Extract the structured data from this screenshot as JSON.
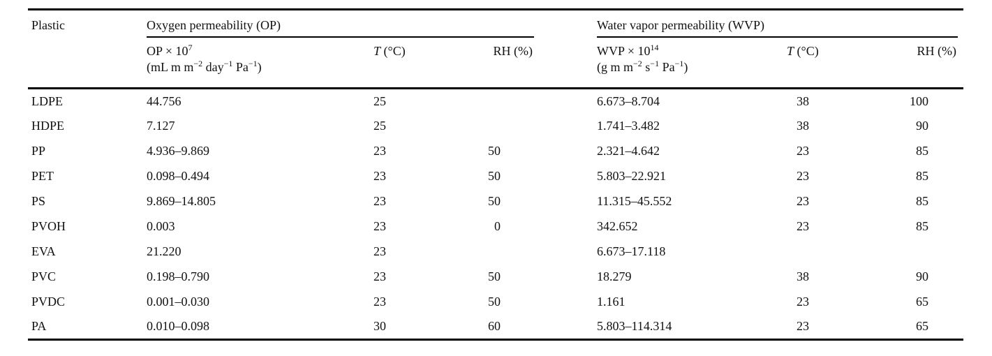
{
  "page": {
    "background": "#ffffff",
    "text_color": "#111111",
    "rule_color": "#000000"
  },
  "table": {
    "headers": {
      "plastic": "Plastic",
      "op_group": "Oxygen permeability (OP)",
      "wvp_group": "Water vapor permeability (WVP)",
      "op_sub_line1": [
        {
          "t": "txt",
          "v": "OP × 10"
        },
        {
          "t": "sup",
          "v": "7"
        }
      ],
      "op_sub_line2": [
        {
          "t": "txt",
          "v": "(mL m m"
        },
        {
          "t": "sup",
          "v": "−2"
        },
        {
          "t": "txt",
          "v": " day"
        },
        {
          "t": "sup",
          "v": "−1"
        },
        {
          "t": "txt",
          "v": " Pa"
        },
        {
          "t": "sup",
          "v": "−1"
        },
        {
          "t": "txt",
          "v": ")"
        }
      ],
      "wvp_sub_line1": [
        {
          "t": "txt",
          "v": "WVP × 10"
        },
        {
          "t": "sup",
          "v": "14"
        }
      ],
      "wvp_sub_line2": [
        {
          "t": "txt",
          "v": "(g m m"
        },
        {
          "t": "sup",
          "v": "−2"
        },
        {
          "t": "txt",
          "v": " s"
        },
        {
          "t": "sup",
          "v": "−1"
        },
        {
          "t": "txt",
          "v": " Pa"
        },
        {
          "t": "sup",
          "v": "−1"
        },
        {
          "t": "txt",
          "v": ")"
        }
      ],
      "temp": [
        {
          "t": "i",
          "v": "T"
        },
        {
          "t": "txt",
          "v": " (°C)"
        }
      ],
      "rh": "RH (%)"
    },
    "rows": [
      [
        "LDPE",
        "44.756",
        "25",
        "",
        "6.673–8.704",
        "38",
        "100"
      ],
      [
        "HDPE",
        "7.127",
        "25",
        "",
        "1.741–3.482",
        "38",
        "90"
      ],
      [
        "PP",
        "4.936–9.869",
        "23",
        "50",
        "2.321–4.642",
        "23",
        "85"
      ],
      [
        "PET",
        "0.098–0.494",
        "23",
        "50",
        "5.803–22.921",
        "23",
        "85"
      ],
      [
        "PS",
        "9.869–14.805",
        "23",
        "50",
        "11.315–45.552",
        "23",
        "85"
      ],
      [
        "PVOH",
        "0.003",
        "23",
        "0",
        "342.652",
        "23",
        "85"
      ],
      [
        "EVA",
        "21.220",
        "23",
        "",
        "6.673–17.118",
        "",
        ""
      ],
      [
        "PVC",
        "0.198–0.790",
        "23",
        "50",
        "18.279",
        "38",
        "90"
      ],
      [
        "PVDC",
        "0.001–0.030",
        "23",
        "50",
        "1.161",
        "23",
        "65"
      ],
      [
        "PA",
        "0.010–0.098",
        "30",
        "60",
        "5.803–114.314",
        "23",
        "65"
      ]
    ]
  }
}
